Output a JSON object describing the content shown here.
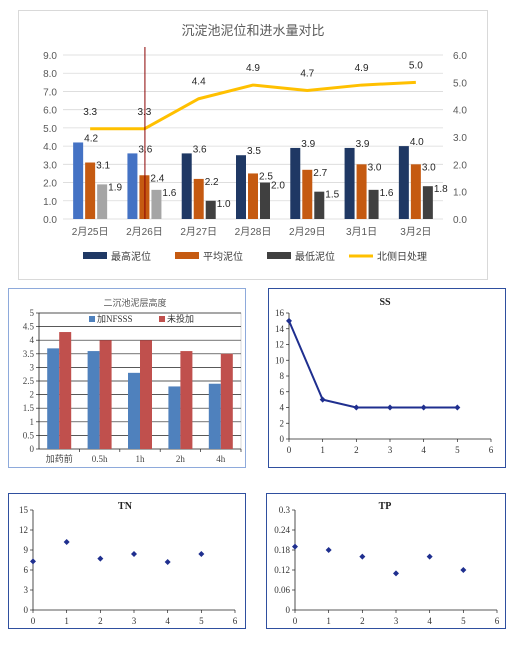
{
  "chart_data": [
    {
      "type": "bar",
      "title": "沉淀池泥位和进水量对比",
      "categories": [
        "2月25日",
        "2月26日",
        "2月27日",
        "2月28日",
        "2月29日",
        "3月1日",
        "3月2日"
      ],
      "series": [
        {
          "name": "最高泥位",
          "values": [
            4.2,
            3.6,
            3.6,
            3.5,
            3.9,
            3.9,
            4.0
          ]
        },
        {
          "name": "平均泥位",
          "values": [
            3.1,
            2.4,
            2.2,
            2.5,
            2.7,
            3.0,
            3.0
          ]
        },
        {
          "name": "最低泥位",
          "values": [
            1.9,
            1.6,
            1.0,
            2.0,
            1.5,
            1.6,
            1.8
          ]
        },
        {
          "name": "北侧日处理",
          "type": "line",
          "axis": "right",
          "values": [
            3.3,
            3.3,
            4.4,
            4.9,
            4.7,
            4.9,
            5.0
          ]
        }
      ],
      "ylim": [
        0,
        9
      ],
      "yticks": [
        "0.0",
        "1.0",
        "2.0",
        "3.0",
        "4.0",
        "5.0",
        "6.0",
        "7.0",
        "8.0",
        "9.0"
      ],
      "y2lim": [
        0,
        6
      ],
      "y2ticks": [
        "0.0",
        "1.0",
        "2.0",
        "3.0",
        "4.0",
        "5.0",
        "6.0"
      ],
      "legend": "bottom",
      "colors": {
        "max": "#1f3864",
        "avg": "#c55a11",
        "min": "#404040",
        "line": "#ffc000",
        "highlight": "#4472c4",
        "marker": "#8b0000"
      }
    },
    {
      "type": "bar",
      "title": "二沉池泥层高度",
      "categories": [
        "加药前",
        "0.5h",
        "1h",
        "2h",
        "4h"
      ],
      "series": [
        {
          "name": "加NFSSS",
          "values": [
            3.7,
            3.6,
            2.8,
            2.3,
            2.4
          ]
        },
        {
          "name": "未投加",
          "values": [
            4.3,
            4.0,
            4.0,
            3.6,
            3.5
          ]
        }
      ],
      "ylim": [
        0,
        5
      ],
      "yticks": [
        "0",
        "0.5",
        "1",
        "1.5",
        "2",
        "2.5",
        "3",
        "3.5",
        "4",
        "4.5",
        "5"
      ],
      "legend": "top-center",
      "colors": {
        "s1": "#4f81bd",
        "s2": "#c0504d"
      }
    },
    {
      "type": "line",
      "title": "SS",
      "x": [
        0,
        1,
        2,
        3,
        4,
        5
      ],
      "y": [
        15,
        5,
        4,
        4,
        4,
        4
      ],
      "xlim": [
        0,
        6
      ],
      "ylim": [
        0,
        16
      ],
      "xticks": [
        "0",
        "1",
        "2",
        "3",
        "4",
        "5",
        "6"
      ],
      "yticks": [
        "0",
        "2",
        "4",
        "6",
        "8",
        "10",
        "12",
        "14",
        "16"
      ],
      "color": "#1f2f8f"
    },
    {
      "type": "scatter",
      "title": "TN",
      "x": [
        0,
        1,
        2,
        3,
        4,
        5
      ],
      "y": [
        7.3,
        10.2,
        7.7,
        8.4,
        7.2,
        8.4
      ],
      "xlim": [
        0,
        6
      ],
      "ylim": [
        0,
        15
      ],
      "xticks": [
        "0",
        "1",
        "2",
        "3",
        "4",
        "5",
        "6"
      ],
      "yticks": [
        "0",
        "3",
        "6",
        "9",
        "12",
        "15"
      ],
      "color": "#1f2f8f"
    },
    {
      "type": "scatter",
      "title": "TP",
      "x": [
        0,
        1,
        2,
        3,
        4,
        5
      ],
      "y": [
        0.19,
        0.18,
        0.16,
        0.11,
        0.16,
        0.12
      ],
      "xlim": [
        0,
        6
      ],
      "ylim": [
        0,
        0.3
      ],
      "xticks": [
        "0",
        "1",
        "2",
        "3",
        "4",
        "5",
        "6"
      ],
      "yticks": [
        "0",
        "0.06",
        "0.12",
        "0.18",
        "0.24",
        "0.3"
      ],
      "color": "#1f2f8f"
    }
  ]
}
